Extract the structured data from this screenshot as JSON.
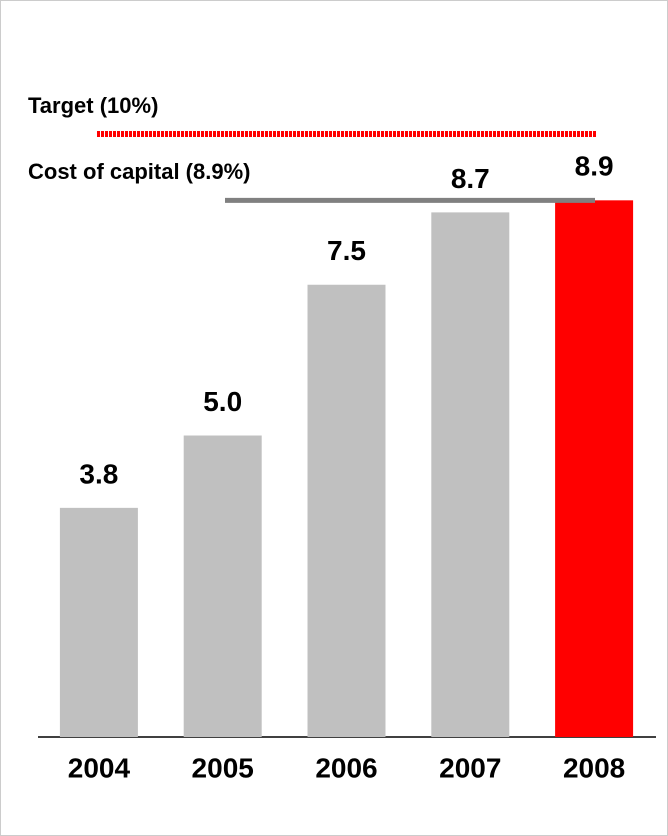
{
  "chart_data": {
    "type": "bar",
    "categories": [
      "2004",
      "2005",
      "2006",
      "2007",
      "2008"
    ],
    "values": [
      3.8,
      5.0,
      7.5,
      8.7,
      8.9
    ],
    "value_labels": [
      "3.8",
      "5.0",
      "7.5",
      "8.7",
      "8.9"
    ],
    "colors": [
      "#c0c0c0",
      "#c0c0c0",
      "#c0c0c0",
      "#c0c0c0",
      "#ff0000"
    ],
    "ylim": [
      0,
      12
    ],
    "reference_lines": [
      {
        "label": "Target (10%)",
        "value": 10,
        "color": "#ff0000",
        "style": "dashed"
      },
      {
        "label": "Cost of capital (8.9%)",
        "value": 8.9,
        "color": "#808080",
        "style": "solid"
      }
    ]
  }
}
